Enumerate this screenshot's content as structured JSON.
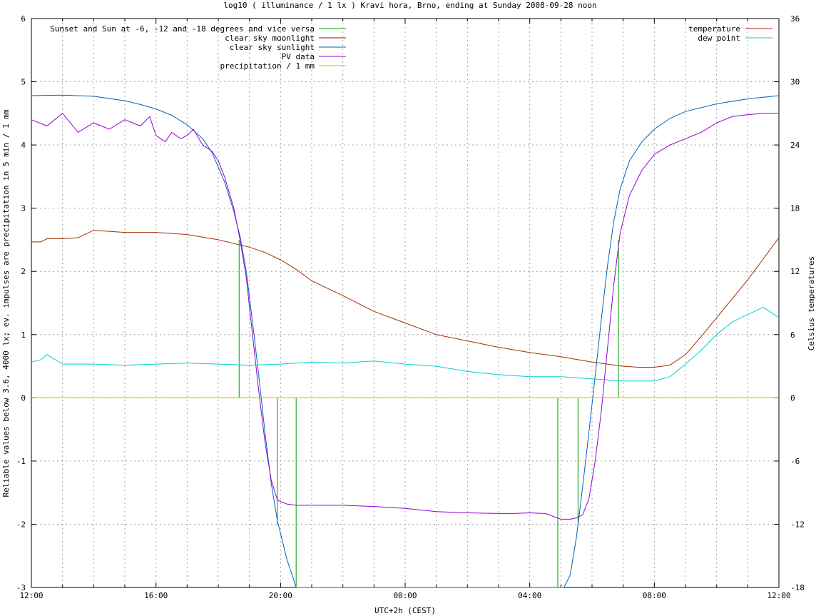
{
  "chart_data": {
    "type": "line",
    "title": "log10 ( illuminance / 1 lx ) Kravi hora, Brno, ending at Sunday 2008-09-28 noon",
    "xlabel": "UTC+2h (CEST)",
    "ylabel": "Reliable values below 3.6, 4000 lx; ev. impulses are precipitation in 5 min / 1 mm",
    "y2label": "Celsius temperatures",
    "x_unit": "hours since 12:00 (Saturday)",
    "xlim": [
      0,
      24
    ],
    "ylim": [
      -3,
      6
    ],
    "y2lim": [
      -18,
      36
    ],
    "x_ticks": [
      "12:00",
      "16:00",
      "20:00",
      "00:00",
      "04:00",
      "08:00",
      "12:00"
    ],
    "y_ticks": [
      "-3",
      "-2",
      "-1",
      "0",
      "1",
      "2",
      "3",
      "4",
      "5",
      "6"
    ],
    "y2_ticks": [
      "-18",
      "-12",
      "-6",
      "0",
      "6",
      "12",
      "18",
      "24",
      "30",
      "36"
    ],
    "grid": true,
    "legend_left": "top-left",
    "legend_right": "top-right",
    "series": [
      {
        "name": "Sunset and Sun at -6, -12 and -18 degrees and vice versa",
        "color": "#00a000",
        "kind": "impulses",
        "x": [
          6.67,
          7.3,
          7.9,
          8.5,
          16.9,
          17.55,
          18.2,
          18.85
        ],
        "y": [
          2.5,
          0,
          -2.0,
          -3.0,
          -3.0,
          -2.0,
          0,
          2.5
        ]
      },
      {
        "name": "clear sky moonlight",
        "color": "#b00000",
        "kind": "line",
        "x": [],
        "y": []
      },
      {
        "name": "clear sky sunlight",
        "color": "#0060c0",
        "kind": "line",
        "x": [
          0,
          1,
          2,
          3,
          3.5,
          4,
          4.5,
          5,
          5.5,
          5.8,
          6.2,
          6.5,
          6.7,
          6.9,
          7.1,
          7.3,
          7.5,
          7.7,
          7.9,
          8.2,
          8.5,
          8.8,
          17.1,
          17.3,
          17.5,
          17.7,
          17.9,
          18.1,
          18.3,
          18.5,
          18.7,
          18.9,
          19.2,
          19.6,
          20.0,
          20.5,
          21,
          22,
          23,
          24
        ],
        "y": [
          4.78,
          4.79,
          4.77,
          4.7,
          4.64,
          4.57,
          4.47,
          4.32,
          4.1,
          3.88,
          3.42,
          2.95,
          2.55,
          2.0,
          1.2,
          0.35,
          -0.55,
          -1.35,
          -1.95,
          -2.55,
          -3.0,
          -3.4,
          -3.4,
          -2.8,
          -2.2,
          -1.4,
          -0.55,
          0.35,
          1.25,
          2.1,
          2.8,
          3.3,
          3.75,
          4.05,
          4.25,
          4.42,
          4.53,
          4.65,
          4.73,
          4.78
        ]
      },
      {
        "name": "PV data",
        "color": "#9400d3",
        "kind": "line",
        "x": [
          0,
          0.5,
          1,
          1.5,
          2,
          2.5,
          3,
          3.5,
          3.8,
          4,
          4.3,
          4.5,
          4.8,
          5,
          5.2,
          5.5,
          5.8,
          6.0,
          6.2,
          6.5,
          6.7,
          6.9,
          7.1,
          7.3,
          7.5,
          7.7,
          7.9,
          8.2,
          8.5,
          9,
          10,
          11,
          12,
          13,
          14,
          15,
          15.5,
          16,
          16.5,
          17,
          17.3,
          17.5,
          17.7,
          17.9,
          18.1,
          18.3,
          18.5,
          18.7,
          18.9,
          19.2,
          19.6,
          20,
          20.5,
          21,
          21.5,
          22,
          22.5,
          23,
          23.5,
          24
        ],
        "y": [
          4.4,
          4.3,
          4.5,
          4.2,
          4.35,
          4.25,
          4.4,
          4.3,
          4.45,
          4.15,
          4.05,
          4.2,
          4.1,
          4.15,
          4.25,
          4.0,
          3.9,
          3.75,
          3.5,
          3.0,
          2.5,
          1.9,
          1.0,
          0.1,
          -0.7,
          -1.3,
          -1.62,
          -1.68,
          -1.7,
          -1.7,
          -1.7,
          -1.72,
          -1.75,
          -1.8,
          -1.82,
          -1.83,
          -1.83,
          -1.82,
          -1.83,
          -1.92,
          -1.92,
          -1.9,
          -1.85,
          -1.6,
          -1.0,
          -0.2,
          0.8,
          1.8,
          2.6,
          3.2,
          3.6,
          3.85,
          4.0,
          4.1,
          4.2,
          4.35,
          4.45,
          4.48,
          4.5,
          4.5
        ]
      },
      {
        "name": "precipitation / 1 mm",
        "color": "#e0b000",
        "kind": "line",
        "x": [
          0,
          24
        ],
        "y": [
          0,
          0
        ]
      },
      {
        "name": "temperature",
        "color": "#a03000",
        "kind": "line",
        "axis": "y2",
        "x": [
          0,
          0.3,
          0.5,
          1,
          1.5,
          2,
          2.5,
          3,
          4,
          5,
          6,
          7,
          7.5,
          8,
          8.5,
          9,
          10,
          11,
          12,
          13,
          14,
          15,
          16,
          17,
          18,
          18.5,
          19,
          19.5,
          20,
          20.5,
          21,
          21.5,
          22,
          22.5,
          23,
          23.5,
          24
        ],
        "y": [
          14.8,
          14.8,
          15.1,
          15.1,
          15.2,
          15.9,
          15.8,
          15.7,
          15.7,
          15.5,
          15.0,
          14.3,
          13.8,
          13.1,
          12.2,
          11.1,
          9.7,
          8.2,
          7.1,
          6.0,
          5.4,
          4.8,
          4.3,
          3.9,
          3.4,
          3.2,
          3.0,
          2.9,
          2.9,
          3.1,
          4.1,
          5.8,
          7.6,
          9.4,
          11.2,
          13.2,
          15.2
        ]
      },
      {
        "name": "dew point",
        "color": "#00d0d0",
        "kind": "line",
        "axis": "y2",
        "x": [
          0,
          0.3,
          0.5,
          1,
          2,
          3,
          4,
          5,
          6,
          7,
          8,
          9,
          10,
          11,
          12,
          13,
          14,
          15,
          16,
          17,
          18,
          19,
          20,
          20.5,
          21,
          21.5,
          22,
          22.5,
          23,
          23.5,
          24
        ],
        "y": [
          3.4,
          3.6,
          4.1,
          3.2,
          3.2,
          3.1,
          3.2,
          3.3,
          3.2,
          3.1,
          3.2,
          3.4,
          3.3,
          3.5,
          3.2,
          3.0,
          2.5,
          2.2,
          2.0,
          2.0,
          1.8,
          1.6,
          1.6,
          2.0,
          3.2,
          4.5,
          6.0,
          7.2,
          7.9,
          8.6,
          7.6
        ]
      }
    ]
  }
}
